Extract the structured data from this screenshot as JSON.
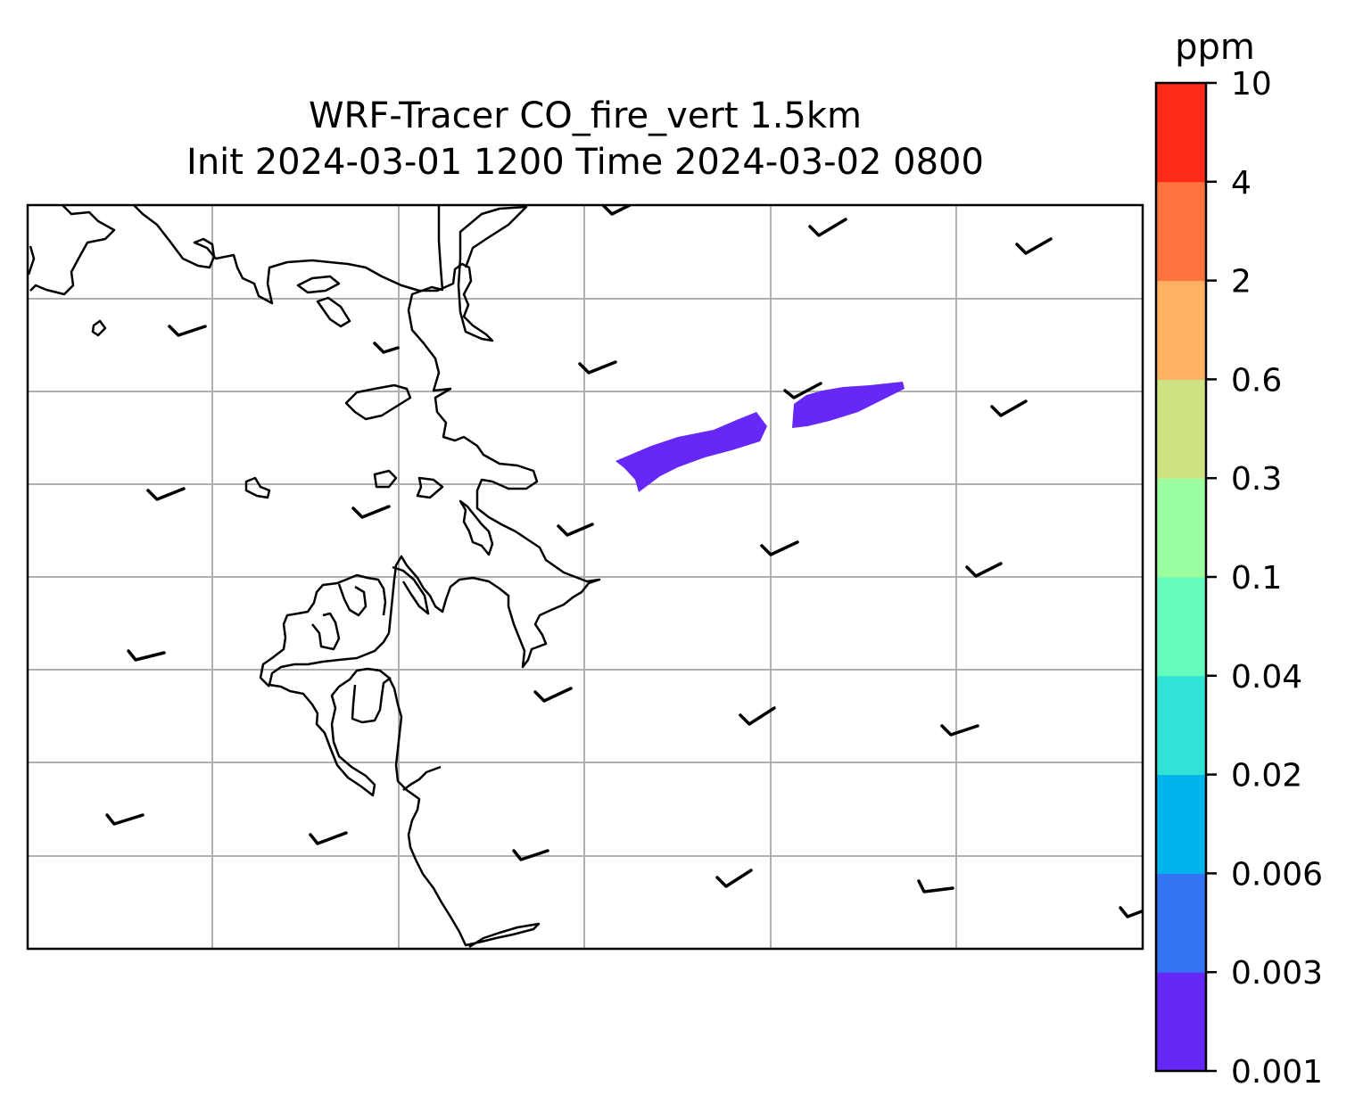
{
  "title": {
    "line1": "WRF-Tracer CO_fire_vert 1.5km",
    "line2": "Init 2024-03-01 1200 Time 2024-03-02 0800"
  },
  "colorbar": {
    "unit": "ppm",
    "levels": [
      "0.001",
      "0.003",
      "0.006",
      "0.02",
      "0.04",
      "0.1",
      "0.3",
      "0.6",
      "2",
      "4",
      "10"
    ],
    "colors": [
      "#6628f6",
      "#3574f3",
      "#00b4ec",
      "#33e2d6",
      "#66fcbd",
      "#9bfea1",
      "#cde283",
      "#ffb163",
      "#ff733f",
      "#ff2a17"
    ]
  },
  "map": {
    "plume_color": "#6628f6",
    "coastline_color": "#000000",
    "grid_color": "#b0b0b0"
  }
}
